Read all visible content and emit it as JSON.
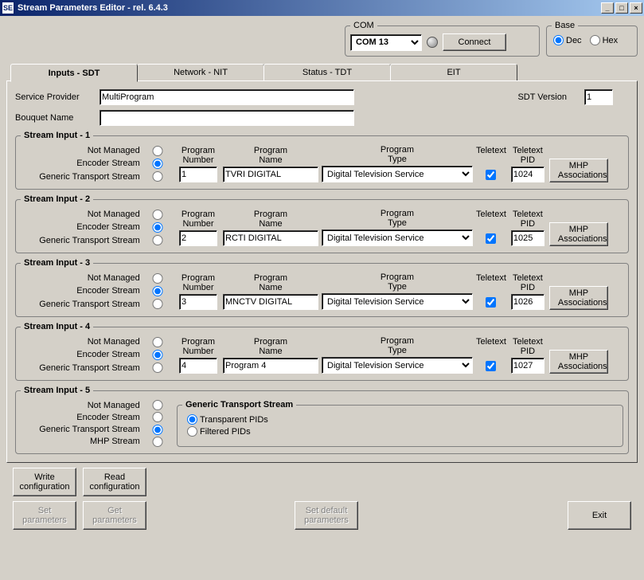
{
  "window": {
    "title": "Stream Parameters Editor - rel. 6.4.3"
  },
  "com": {
    "legend": "COM",
    "combo": "COM 13",
    "connect": "Connect"
  },
  "base": {
    "legend": "Base",
    "dec": "Dec",
    "hex": "Hex",
    "selected": "dec"
  },
  "tabs": {
    "inputs": "Inputs - SDT",
    "network": "Network - NIT",
    "status": "Status - TDT",
    "eit": "EIT"
  },
  "sdt": {
    "provider_label": "Service Provider",
    "provider": "MultiProgram",
    "bouquet_label": "Bouquet Name",
    "bouquet": "",
    "version_label": "SDT Version",
    "version": "1"
  },
  "stream_labels": {
    "not_managed": "Not Managed",
    "encoder": "Encoder Stream",
    "gts": "Generic Transport Stream",
    "mhp": "MHP Stream",
    "prog_num": "Program Number",
    "prog_name": "Program Name",
    "prog_type": "Program Type",
    "teletext": "Teletext",
    "teletext_pid": "Teletext PID",
    "mhp_btn": "MHP Associations"
  },
  "streams": [
    {
      "title": "Stream Input - 1",
      "mode": "encoder",
      "num": "1",
      "name": "TVRI DIGITAL",
      "type": "Digital Television Service",
      "ttx": true,
      "pid": "1024"
    },
    {
      "title": "Stream Input - 2",
      "mode": "encoder",
      "num": "2",
      "name": "RCTI DIGITAL",
      "type": "Digital Television Service",
      "ttx": true,
      "pid": "1025"
    },
    {
      "title": "Stream Input - 3",
      "mode": "encoder",
      "num": "3",
      "name": "MNCTV DIGITAL",
      "type": "Digital Television Service",
      "ttx": true,
      "pid": "1026"
    },
    {
      "title": "Stream Input - 4",
      "mode": "encoder",
      "num": "4",
      "name": "Program 4",
      "type": "Digital Television Service",
      "ttx": true,
      "pid": "1027"
    }
  ],
  "stream5": {
    "title": "Stream Input - 5",
    "mode": "gts",
    "gts_legend": "Generic Transport Stream",
    "transparent": "Transparent PIDs",
    "filtered": "Filtered PIDs",
    "selected": "transparent"
  },
  "buttons": {
    "write": "Write configuration",
    "read": "Read configuration",
    "set": "Set parameters",
    "get": "Get parameters",
    "setdef": "Set default parameters",
    "exit": "Exit"
  }
}
